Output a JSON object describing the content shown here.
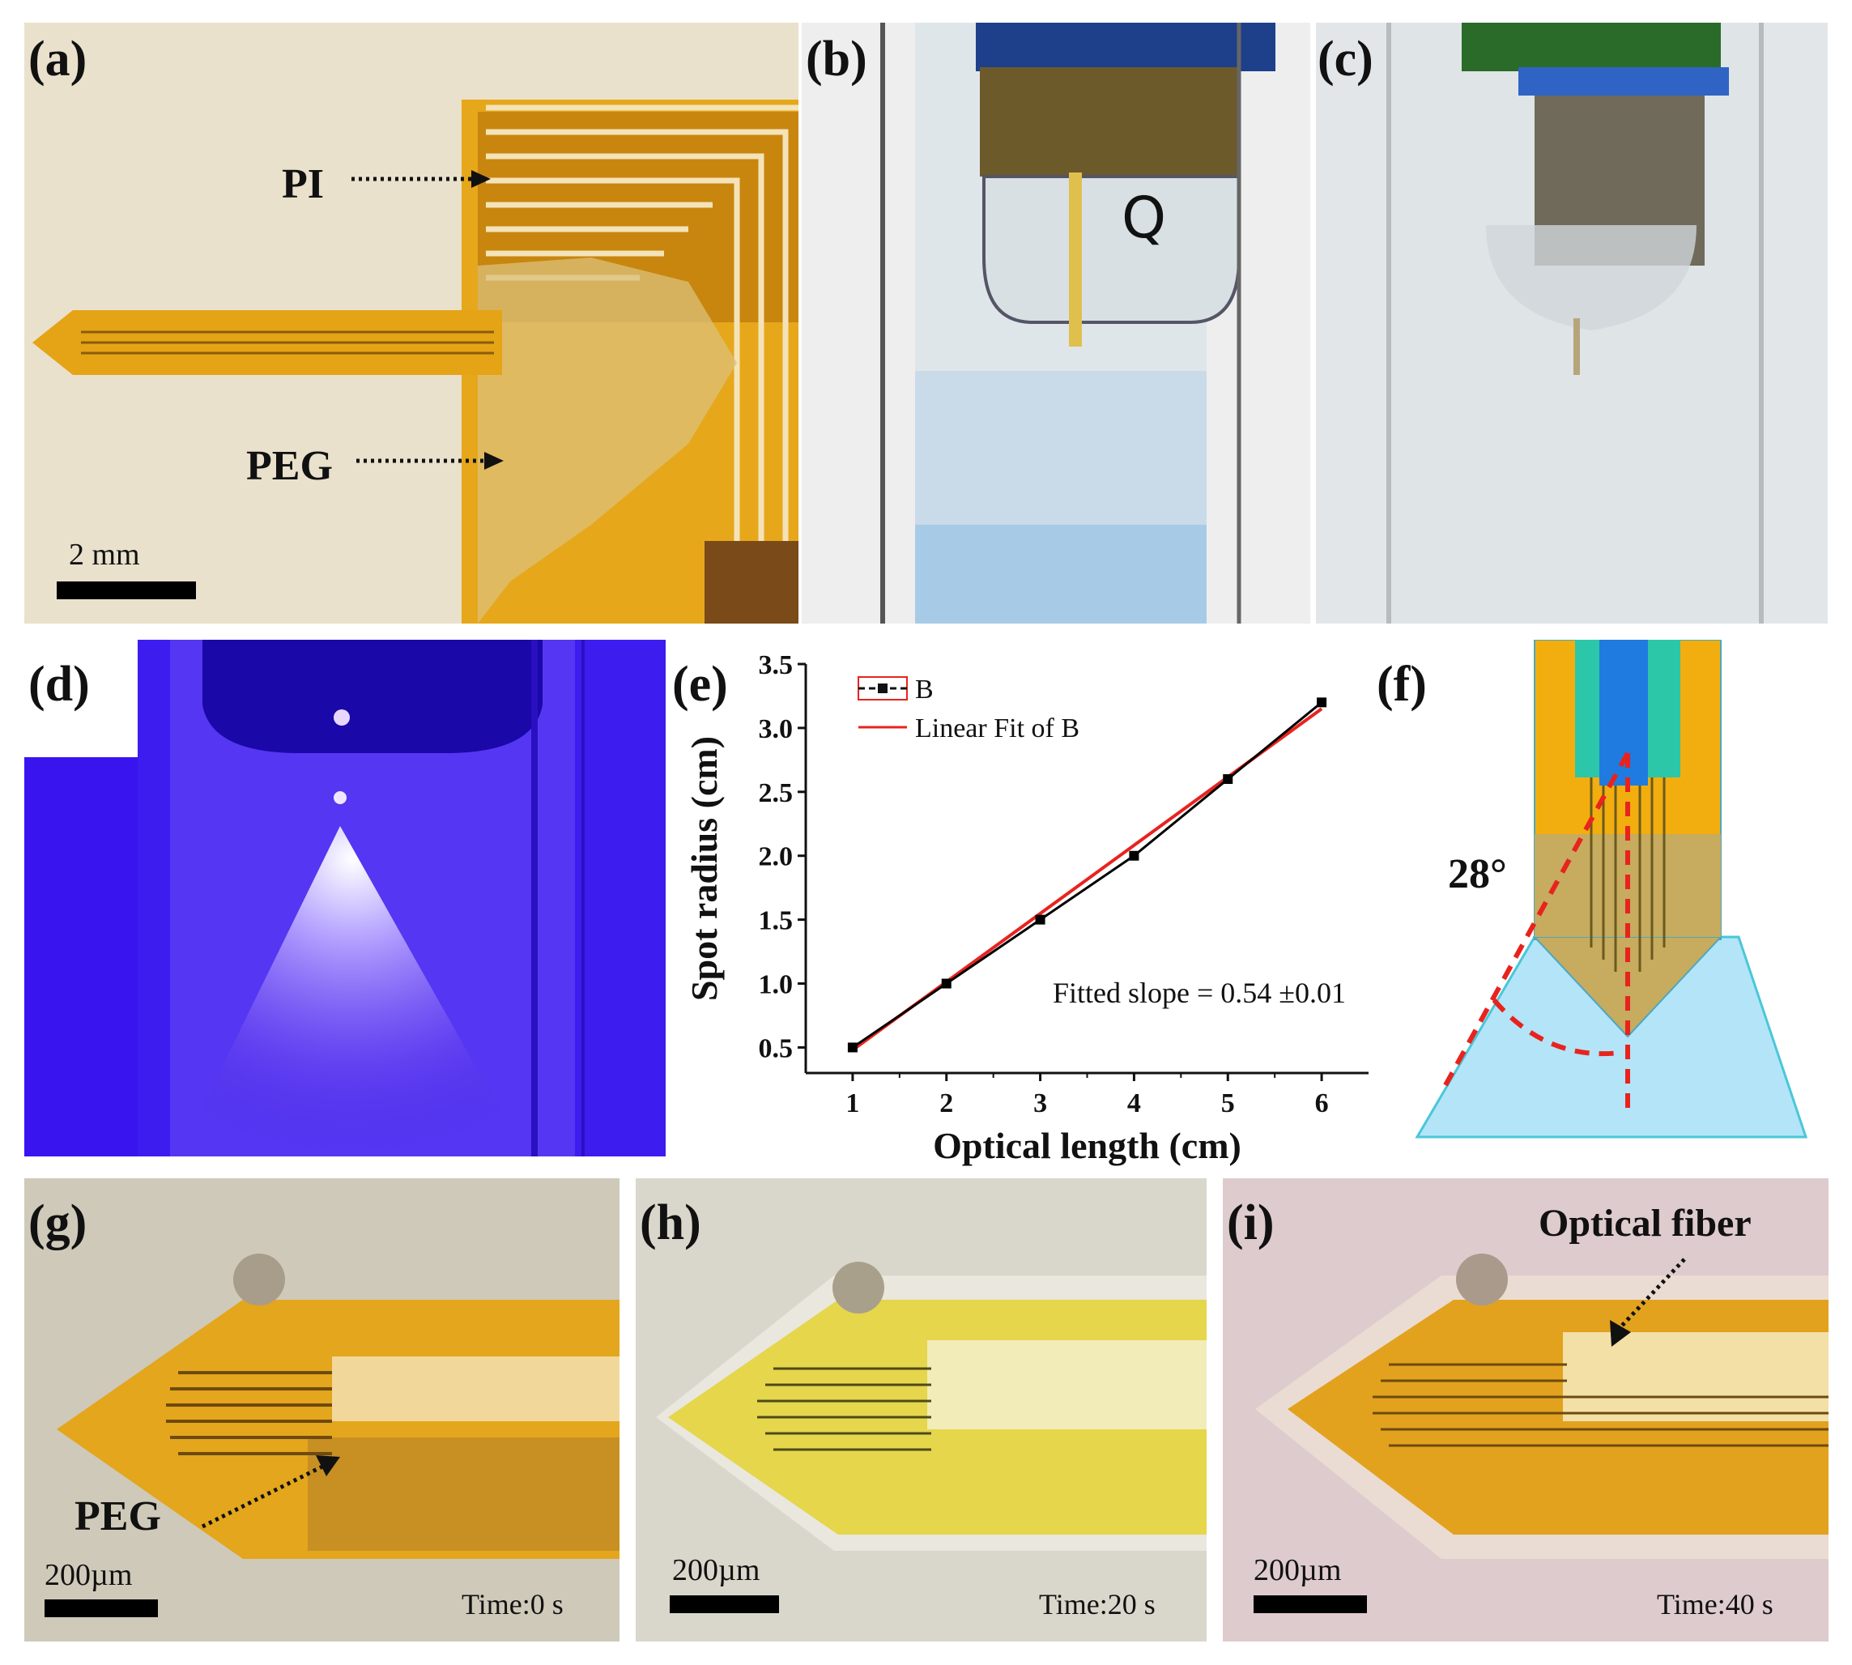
{
  "panels": {
    "a": {
      "label": "(a)",
      "pi_label": "PI",
      "peg_label": "PEG",
      "scale": "2 mm"
    },
    "b": {
      "label": "(b)",
      "marker_text": "Q"
    },
    "c": {
      "label": "(c)"
    },
    "d": {
      "label": "(d)"
    },
    "e": {
      "label": "(e)",
      "fit_text": "Fitted slope = 0.54 ±0.01"
    },
    "f": {
      "label": "(f)",
      "angle": "28°"
    },
    "g": {
      "label": "(g)",
      "peg_label": "PEG",
      "scale": "200µm",
      "time": "Time:0 s"
    },
    "h": {
      "label": "(h)",
      "scale": "200µm",
      "time": "Time:20 s"
    },
    "i": {
      "label": "(i)",
      "fiber_label": "Optical fiber",
      "scale": "200µm",
      "time": "Time:40 s"
    }
  },
  "chart_data": {
    "type": "line",
    "xlabel": "Optical length (cm)",
    "ylabel": "Spot radius (cm)",
    "xlim": [
      0.5,
      6.5
    ],
    "ylim": [
      0.3,
      3.5
    ],
    "xticks": [
      "1",
      "2",
      "3",
      "4",
      "5",
      "6"
    ],
    "yticks": [
      "0.5",
      "1.0",
      "1.5",
      "2.0",
      "2.5",
      "3.0",
      "3.5"
    ],
    "series": [
      {
        "name": "B",
        "x": [
          1,
          2,
          3,
          4,
          5,
          6
        ],
        "y": [
          0.5,
          1.0,
          1.5,
          2.0,
          2.6,
          3.2
        ],
        "color": "#000000",
        "marker": "square"
      },
      {
        "name": "Linear Fit of B",
        "x": [
          1,
          6
        ],
        "y": [
          0.48,
          3.15
        ],
        "color": "#e8231e"
      }
    ],
    "legend": "top-left",
    "grid": false
  },
  "colors": {
    "polyimide": "#e8a818",
    "tissue_phantom": "#b4e4f8",
    "blue_light": "#3a1ce8",
    "fit_line": "#e8231e"
  }
}
